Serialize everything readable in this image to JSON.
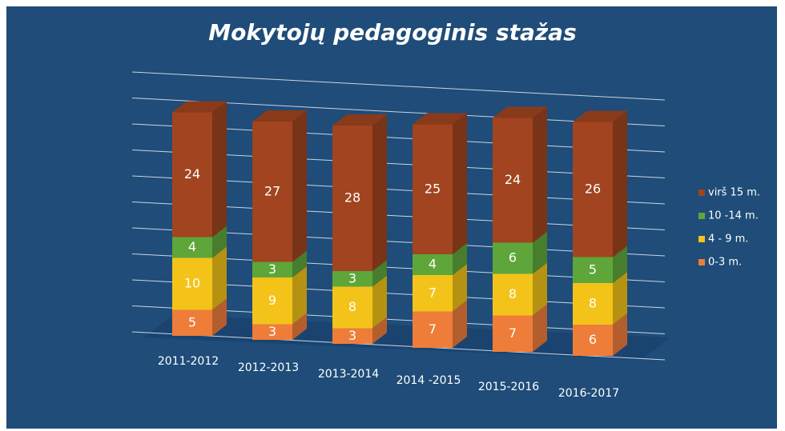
{
  "chart_data": {
    "type": "bar",
    "stacked": true,
    "title": "Mokytojų pedagoginis stažas",
    "categories": [
      "2011-2012",
      "2012-2013",
      "2013-2014",
      "2014 -2015",
      "2015-2016",
      "2016-2017"
    ],
    "series": [
      {
        "name": "0-3 m.",
        "color": "#ee7d3a",
        "values": [
          5,
          3,
          3,
          7,
          7,
          6
        ]
      },
      {
        "name": "4 - 9 m.",
        "color": "#f3c319",
        "values": [
          10,
          9,
          8,
          7,
          8,
          8
        ]
      },
      {
        "name": "10 -14 m.",
        "color": "#5ea63a",
        "values": [
          4,
          3,
          3,
          4,
          6,
          5
        ]
      },
      {
        "name": "virš 15 m.",
        "color": "#a1441f",
        "values": [
          24,
          27,
          28,
          25,
          24,
          26
        ]
      }
    ],
    "ylim": [
      0,
      50
    ],
    "yticks": [
      0,
      5,
      10,
      15,
      20,
      25,
      30,
      35,
      40,
      45,
      50
    ],
    "grid": true,
    "legend": "right"
  }
}
